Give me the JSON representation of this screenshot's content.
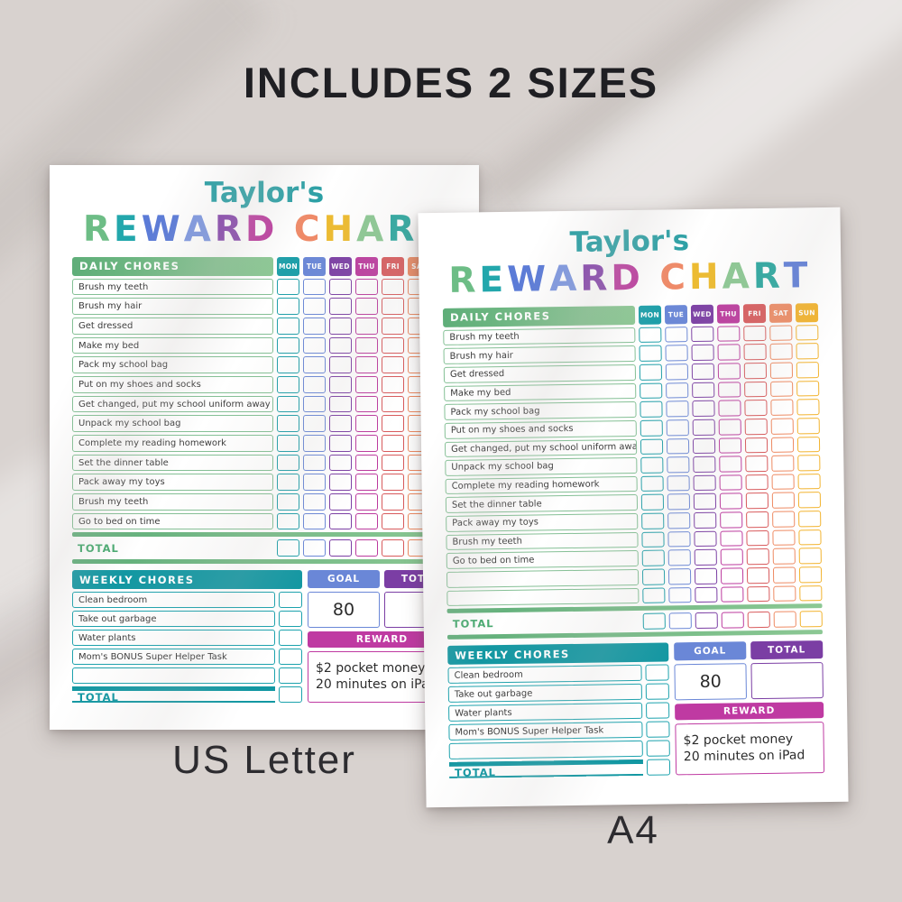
{
  "page": {
    "title": "INCLUDES 2 SIZES",
    "caption_left": "US Letter",
    "caption_right": "A4",
    "background_color": "#d8d2cf"
  },
  "chart": {
    "owner": "Taylor's",
    "owner_color": "#2aa0a5",
    "heading_letters": [
      {
        "ch": "R",
        "color": "#6dbd86"
      },
      {
        "ch": "E",
        "color": "#23a7ac"
      },
      {
        "ch": "W",
        "color": "#5b7bd7"
      },
      {
        "ch": "A",
        "color": "#7d97e0"
      },
      {
        "ch": "R",
        "color": "#8544ab"
      },
      {
        "ch": "D",
        "color": "#bb3d9f"
      },
      {
        "ch": " ",
        "color": ""
      },
      {
        "ch": "C",
        "color": "#ef8a68"
      },
      {
        "ch": "H",
        "color": "#edbb2f"
      },
      {
        "ch": "A",
        "color": "#8cc893"
      },
      {
        "ch": "R",
        "color": "#2aa79f"
      },
      {
        "ch": "T",
        "color": "#5c7cd8"
      }
    ],
    "daily": {
      "header": "DAILY CHORES",
      "header_gradient": [
        "#5fae79",
        "#8cc894"
      ],
      "row_border_color": "#84c095",
      "total_label": "TOTAL",
      "total_color": "#45a96e",
      "days": [
        {
          "label": "MON",
          "color": "#1e9fa9"
        },
        {
          "label": "TUE",
          "color": "#6a87d7"
        },
        {
          "label": "WED",
          "color": "#7b3ea4"
        },
        {
          "label": "THU",
          "color": "#bc3a9e"
        },
        {
          "label": "FRI",
          "color": "#d85a5c"
        },
        {
          "label": "SAT",
          "color": "#ee8a62"
        },
        {
          "label": "SUN",
          "color": "#f2b32e"
        }
      ],
      "chores": [
        "Brush my teeth",
        "Brush my hair",
        "Get dressed",
        "Make my bed",
        "Pack my school bag",
        "Put on my shoes and socks",
        "Get changed, put my school uniform away",
        "Unpack my school bag",
        "Complete my reading homework",
        "Set the dinner table",
        "Pack away my toys",
        "Brush my teeth",
        "Go to bed on time"
      ]
    },
    "weekly": {
      "header": "WEEKLY CHORES",
      "header_color": "#1297a2",
      "row_border_color": "#1ba2ad",
      "total_label": "TOTAL",
      "total_color": "#0f96a1",
      "chores": [
        "Clean bedroom",
        "Take out garbage",
        "Water plants",
        "Mom's BONUS Super Helper Task"
      ],
      "goal_label": "GOAL",
      "goal_color": "#6a87d7",
      "goal_value": "80",
      "total_col_label": "TOTAL",
      "total_col_color": "#7b3ea4",
      "reward_label": "REWARD",
      "reward_color": "#bf3aa2",
      "reward_lines": [
        "$2 pocket money",
        "20 minutes on iPad"
      ]
    },
    "sheets": [
      {
        "id": "us-letter",
        "size_label": "US Letter",
        "empty_daily_rows": 0,
        "empty_weekly_rows": 1
      },
      {
        "id": "a4",
        "size_label": "A4",
        "empty_daily_rows": 2,
        "empty_weekly_rows": 1
      }
    ]
  }
}
